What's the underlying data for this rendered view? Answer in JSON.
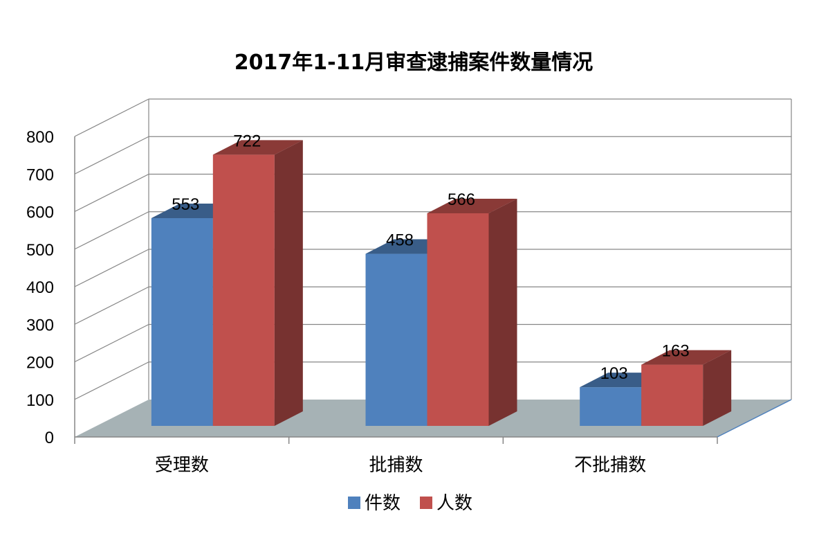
{
  "chart_data": {
    "type": "bar",
    "title": "2017年1-11月审查逮捕案件数量情况",
    "categories": [
      "受理数",
      "批捕数",
      "不批捕数"
    ],
    "series": [
      {
        "name": "件数",
        "values": [
          553,
          458,
          103
        ],
        "color": "#4F81BD"
      },
      {
        "name": "人数",
        "values": [
          722,
          566,
          163
        ],
        "color": "#C0504D"
      }
    ],
    "ylim": [
      0,
      800
    ],
    "yticks": [
      "0",
      "100",
      "200",
      "300",
      "400",
      "500",
      "600",
      "700",
      "800"
    ],
    "xlabel": "",
    "ylabel": "",
    "grid": true,
    "legend_position": "bottom",
    "style": "3d-column",
    "floor_color": "#A6B2B5"
  }
}
